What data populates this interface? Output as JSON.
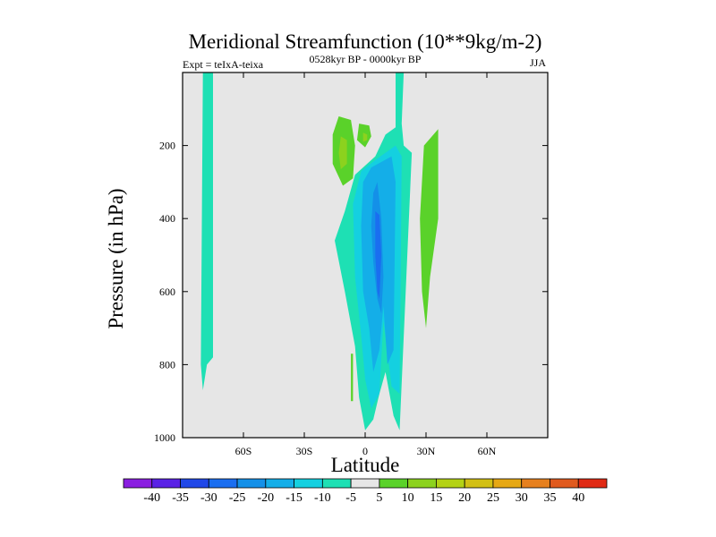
{
  "chart_data": {
    "type": "heatmap",
    "title": "Meridional Streamfunction (10**9kg/m-2)",
    "subtitle_left": "Expt = teIxA-teixa",
    "subtitle_center": "0528kyr BP - 0000kyr BP",
    "subtitle_right": "JJA",
    "xlabel": "Latitude",
    "ylabel": "Pressure (in hPa)",
    "xlim": [
      -90,
      90
    ],
    "ylim": [
      0,
      1000
    ],
    "x_ticks": [
      {
        "value": -60,
        "label": "60S"
      },
      {
        "value": -30,
        "label": "30S"
      },
      {
        "value": 0,
        "label": "0"
      },
      {
        "value": 30,
        "label": "30N"
      },
      {
        "value": 60,
        "label": "60N"
      }
    ],
    "y_ticks": [
      {
        "value": 200,
        "label": "200"
      },
      {
        "value": 400,
        "label": "400"
      },
      {
        "value": 600,
        "label": "600"
      },
      {
        "value": 800,
        "label": "800"
      },
      {
        "value": 1000,
        "label": "1000"
      }
    ],
    "background_color": "#e6e6e6",
    "colorbar": {
      "labels": [
        "-40",
        "-35",
        "-30",
        "-25",
        "-20",
        "-15",
        "-10",
        "-5",
        "5",
        "10",
        "15",
        "20",
        "25",
        "30",
        "35",
        "40"
      ],
      "colors": [
        "#8a1ee0",
        "#5a22e6",
        "#2048e8",
        "#1a6ef0",
        "#1490e8",
        "#14aee8",
        "#14d0e0",
        "#1ee0b4",
        "#e6e6e6",
        "#5ad22a",
        "#8cd21e",
        "#b4d214",
        "#d2c014",
        "#e6a814",
        "#e6801e",
        "#e05a1e",
        "#e02a14"
      ]
    },
    "contours": [
      {
        "level": "-5 to -10",
        "color": "#1ee0b4",
        "points": [
          [
            -80,
            0
          ],
          [
            -75,
            0
          ],
          [
            -75,
            780
          ],
          [
            -78,
            800
          ],
          [
            -80,
            870
          ],
          [
            -81,
            800
          ]
        ]
      },
      {
        "level": "-5 to -10",
        "color": "#1ee0b4",
        "points": [
          [
            15,
            0
          ],
          [
            19,
            0
          ],
          [
            18,
            140
          ],
          [
            19,
            200
          ],
          [
            23,
            220
          ],
          [
            17,
            980
          ],
          [
            14,
            940
          ],
          [
            10,
            820
          ],
          [
            7,
            880
          ],
          [
            4,
            950
          ],
          [
            0,
            980
          ],
          [
            -3,
            890
          ],
          [
            -5,
            750
          ],
          [
            -10,
            600
          ],
          [
            -15,
            460
          ],
          [
            -10,
            380
          ],
          [
            -5,
            280
          ],
          [
            5,
            230
          ],
          [
            10,
            170
          ],
          [
            15,
            150
          ]
        ]
      },
      {
        "level": "-10 to -15",
        "color": "#14d0e0",
        "points": [
          [
            5,
            240
          ],
          [
            15,
            200
          ],
          [
            18,
            230
          ],
          [
            17,
            880
          ],
          [
            13,
            860
          ],
          [
            9,
            680
          ],
          [
            7,
            880
          ],
          [
            3,
            920
          ],
          [
            0,
            840
          ],
          [
            -2,
            720
          ],
          [
            -5,
            560
          ],
          [
            -6,
            360
          ],
          [
            -2,
            270
          ]
        ]
      },
      {
        "level": "-15 to -20",
        "color": "#14aee8",
        "points": [
          [
            3,
            260
          ],
          [
            13,
            230
          ],
          [
            15,
            300
          ],
          [
            14,
            760
          ],
          [
            11,
            800
          ],
          [
            9,
            640
          ],
          [
            7,
            760
          ],
          [
            4,
            820
          ],
          [
            2,
            700
          ],
          [
            -1,
            600
          ],
          [
            -2,
            420
          ],
          [
            -1,
            300
          ]
        ]
      },
      {
        "level": "-20 to -25",
        "color": "#1490e8",
        "points": [
          [
            4,
            330
          ],
          [
            6,
            300
          ],
          [
            8,
            400
          ],
          [
            9,
            560
          ],
          [
            8,
            660
          ],
          [
            6,
            620
          ],
          [
            4,
            520
          ],
          [
            3,
            420
          ]
        ]
      },
      {
        "level": "-25 to -30",
        "color": "#1a6ef0",
        "points": [
          [
            5,
            380
          ],
          [
            7,
            390
          ],
          [
            8,
            500
          ],
          [
            7,
            620
          ],
          [
            6,
            600
          ],
          [
            5,
            500
          ]
        ]
      },
      {
        "level": "5 to 10",
        "color": "#5ad22a",
        "points": [
          [
            -13,
            120
          ],
          [
            -7,
            130
          ],
          [
            -5,
            200
          ],
          [
            -6,
            290
          ],
          [
            -11,
            310
          ],
          [
            -16,
            250
          ],
          [
            -16,
            170
          ]
        ]
      },
      {
        "level": "10 to 15",
        "color": "#8cd21e",
        "points": [
          [
            -12,
            175
          ],
          [
            -9,
            185
          ],
          [
            -9,
            250
          ],
          [
            -12,
            265
          ],
          [
            -13,
            220
          ]
        ]
      },
      {
        "level": "5 to 10",
        "color": "#5ad22a",
        "points": [
          [
            -3,
            140
          ],
          [
            2,
            145
          ],
          [
            3,
            175
          ],
          [
            0,
            205
          ],
          [
            -4,
            185
          ]
        ]
      },
      {
        "level": "10 to 15",
        "color": "#8cd21e",
        "points": [
          [
            -1,
            165
          ],
          [
            1,
            170
          ],
          [
            1,
            185
          ],
          [
            -1,
            190
          ]
        ]
      },
      {
        "level": "5 to 10",
        "color": "#5ad22a",
        "points": [
          [
            29,
            200
          ],
          [
            36,
            155
          ],
          [
            36,
            400
          ],
          [
            32,
            560
          ],
          [
            30,
            700
          ],
          [
            28,
            600
          ],
          [
            27,
            400
          ]
        ]
      },
      {
        "level": "5 to 10",
        "color": "#5ad22a",
        "points": [
          [
            -7,
            770
          ],
          [
            -6,
            770
          ],
          [
            -6,
            900
          ],
          [
            -7,
            900
          ]
        ]
      }
    ]
  }
}
